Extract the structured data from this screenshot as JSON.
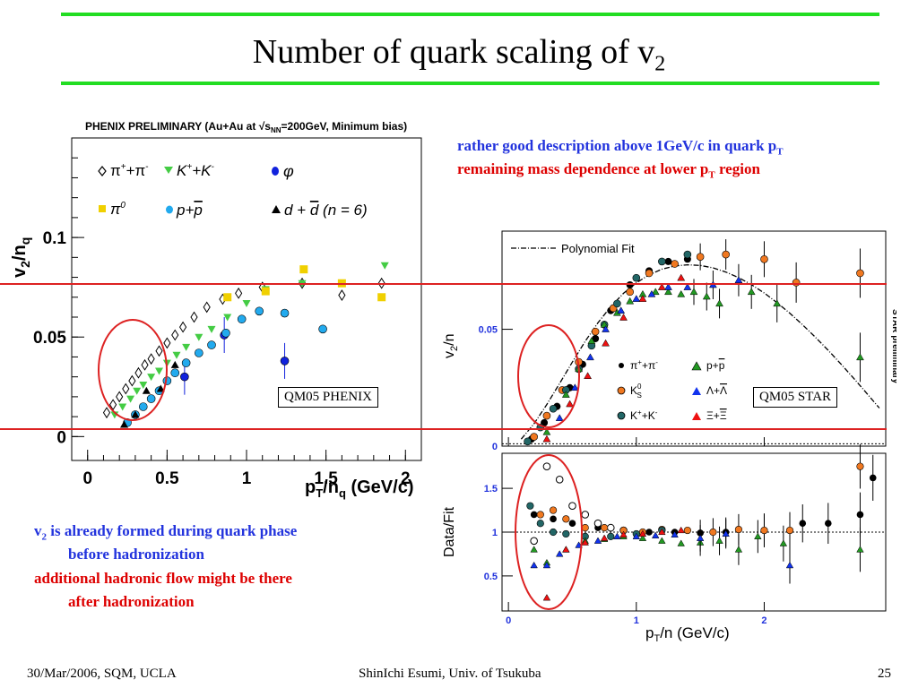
{
  "slide": {
    "title_main": "Number of quark scaling of v",
    "title_sub": "2",
    "notes_top": {
      "line1_main": "rather good description above 1GeV/c in quark p",
      "line1_sub": "T",
      "line2_main": "remaining mass dependence at lower p",
      "line2_sub": "T",
      "line2_tail": " region"
    },
    "notes_bottom": {
      "line1_v": "v",
      "line1_sub": "2",
      "line1_tail": " is already formed during quark phase",
      "line2": "before hadronization",
      "line3": "additional hadronic flow might be there",
      "line4": "after hadronization"
    },
    "qm05_phenix": "QM05 PHENIX",
    "qm05_star": "QM05 STAR",
    "footer": {
      "left": "30/Mar/2006, SQM, UCLA",
      "center": "ShinIchi Esumi, Univ. of Tsukuba",
      "right": "25"
    },
    "colors": {
      "accent_green": "#22dd22",
      "highlight_red": "#dd2222",
      "blue_text": "#2233dd",
      "red_text": "#dd0000"
    }
  },
  "chart_data": [
    {
      "type": "scatter",
      "title": "PHENIX PRELIMINARY (Au+Au at √sNN=200GeV, Minimum bias)",
      "xlabel": "pT/nq (GeV/c)",
      "ylabel": "v2/nq",
      "xlim": [
        -0.1,
        2.1
      ],
      "ylim": [
        -0.012,
        0.15
      ],
      "xticks": [
        "0",
        "0.5",
        "1",
        "1.5",
        "2"
      ],
      "yticks": [
        "0",
        "0.05",
        "0.1"
      ],
      "grid": false,
      "legend": [
        "π⁺+π⁻",
        "K⁺+K⁻",
        "φ",
        "π⁰",
        "p+p̄",
        "d + d̄ (n = 6)"
      ],
      "series": [
        {
          "name": "π⁺+π⁻",
          "marker": "diamond-open",
          "color": "#000000",
          "x": [
            0.12,
            0.16,
            0.2,
            0.24,
            0.28,
            0.32,
            0.36,
            0.4,
            0.45,
            0.5,
            0.55,
            0.6,
            0.67,
            0.75,
            0.85,
            0.95,
            1.1,
            1.35,
            1.6,
            1.85
          ],
          "y": [
            0.012,
            0.016,
            0.02,
            0.024,
            0.028,
            0.032,
            0.036,
            0.039,
            0.043,
            0.047,
            0.051,
            0.055,
            0.06,
            0.065,
            0.069,
            0.072,
            0.075,
            0.077,
            0.071,
            0.077
          ]
        },
        {
          "name": "K⁺+K⁻",
          "marker": "triangle-down",
          "color": "#44cc44",
          "x": [
            0.17,
            0.22,
            0.27,
            0.31,
            0.35,
            0.4,
            0.45,
            0.5,
            0.56,
            0.62,
            0.7,
            0.78,
            0.88,
            1.0,
            1.12,
            1.35,
            1.6,
            1.87
          ],
          "y": [
            0.011,
            0.015,
            0.019,
            0.023,
            0.026,
            0.03,
            0.033,
            0.037,
            0.041,
            0.045,
            0.05,
            0.054,
            0.06,
            0.067,
            0.074,
            0.077,
            0.077,
            0.086
          ]
        },
        {
          "name": "φ",
          "marker": "circle",
          "color": "#1122dd",
          "x": [
            0.61,
            0.86,
            1.24
          ],
          "y": [
            0.03,
            0.051,
            0.038
          ]
        },
        {
          "name": "π⁰",
          "marker": "square",
          "color": "#f0d000",
          "x": [
            0.88,
            1.12,
            1.36,
            1.6,
            1.85
          ],
          "y": [
            0.07,
            0.073,
            0.084,
            0.077,
            0.07
          ]
        },
        {
          "name": "p+p̄",
          "marker": "circle",
          "color": "#22aaee",
          "x": [
            0.25,
            0.3,
            0.35,
            0.4,
            0.45,
            0.5,
            0.55,
            0.62,
            0.7,
            0.78,
            0.87,
            0.97,
            1.08,
            1.24,
            1.48
          ],
          "y": [
            0.007,
            0.011,
            0.015,
            0.019,
            0.023,
            0.028,
            0.032,
            0.037,
            0.042,
            0.046,
            0.052,
            0.059,
            0.063,
            0.062,
            0.054
          ]
        },
        {
          "name": "d + d̄ (n = 6)",
          "marker": "triangle-up",
          "color": "#000000",
          "x": [
            0.23,
            0.3,
            0.37,
            0.46,
            0.55
          ],
          "y": [
            0.006,
            0.011,
            0.023,
            0.024,
            0.036
          ]
        }
      ]
    },
    {
      "type": "scatter",
      "xlabel": "pT/n (GeV/c)",
      "ylabel": "v2/n",
      "xlim": [
        -0.05,
        2.95
      ],
      "ylim": [
        0,
        0.092
      ],
      "xticks": [
        "0",
        "1",
        "2"
      ],
      "yticks": [
        "0",
        "0.05"
      ],
      "legend": [
        "Polynomial Fit",
        "π⁺+π⁻",
        "p+p̄",
        "K⁰S",
        "Λ+Λ̄",
        "K⁺+K⁻",
        "Ξ+Ξ̄"
      ],
      "annotation": "STAR preliminary",
      "fit": {
        "name": "Polynomial Fit",
        "x": [
          0.1,
          0.2,
          0.3,
          0.4,
          0.5,
          0.6,
          0.7,
          0.8,
          0.9,
          1.0,
          1.1,
          1.2,
          1.3,
          1.4,
          1.5,
          1.6,
          1.7,
          1.8,
          1.9,
          2.0,
          2.1,
          2.2,
          2.3,
          2.4,
          2.5,
          2.6,
          2.7,
          2.8,
          2.9
        ],
        "y": [
          0.003,
          0.0096,
          0.0178,
          0.0268,
          0.036,
          0.0448,
          0.0528,
          0.0597,
          0.0654,
          0.0699,
          0.0733,
          0.0757,
          0.0771,
          0.0776,
          0.0773,
          0.0763,
          0.0745,
          0.0721,
          0.0691,
          0.0655,
          0.0614,
          0.0569,
          0.0519,
          0.0466,
          0.041,
          0.0351,
          0.029,
          0.0227,
          0.0163
        ]
      },
      "series": [
        {
          "name": "π⁺+π⁻",
          "marker": "circle",
          "color": "#000000",
          "x": [
            0.18,
            0.28,
            0.38,
            0.48,
            0.58,
            0.68,
            0.8,
            0.95,
            1.1,
            1.25,
            1.4
          ],
          "y": [
            0.003,
            0.01,
            0.017,
            0.025,
            0.035,
            0.046,
            0.058,
            0.069,
            0.075,
            0.079,
            0.08
          ]
        },
        {
          "name": "K⁰S",
          "marker": "circle",
          "color": "#f07820",
          "x": [
            0.2,
            0.3,
            0.42,
            0.55,
            0.68,
            0.82,
            0.95,
            1.1,
            1.3,
            1.5,
            1.7,
            2.0,
            2.25,
            2.75
          ],
          "y": [
            0.004,
            0.013,
            0.024,
            0.036,
            0.049,
            0.059,
            0.066,
            0.074,
            0.078,
            0.081,
            0.082,
            0.08,
            0.07,
            0.074
          ]
        },
        {
          "name": "K⁺+K⁻",
          "marker": "circle",
          "color": "#226666",
          "x": [
            0.15,
            0.25,
            0.35,
            0.45,
            0.55,
            0.65,
            0.75,
            0.85,
            1.0,
            1.2,
            1.4
          ],
          "y": [
            0.002,
            0.008,
            0.016,
            0.024,
            0.033,
            0.043,
            0.052,
            0.061,
            0.072,
            0.079,
            0.082
          ]
        },
        {
          "name": "p+p̄",
          "marker": "triangle-up",
          "color": "#229922",
          "x": [
            0.3,
            0.45,
            0.55,
            0.65,
            0.75,
            0.85,
            0.95,
            1.05,
            1.15,
            1.25,
            1.35,
            1.45,
            1.55,
            1.65,
            1.9,
            2.1,
            2.75
          ],
          "y": [
            0.006,
            0.022,
            0.033,
            0.045,
            0.052,
            0.057,
            0.062,
            0.065,
            0.066,
            0.066,
            0.065,
            0.066,
            0.064,
            0.061,
            0.066,
            0.061,
            0.038
          ]
        },
        {
          "name": "Λ+Λ̄",
          "marker": "triangle-up",
          "color": "#1133ee",
          "x": [
            0.4,
            0.52,
            0.64,
            0.76,
            0.88,
            1.0,
            1.12,
            1.25,
            1.4,
            1.6,
            1.8
          ],
          "y": [
            0.012,
            0.025,
            0.038,
            0.05,
            0.058,
            0.063,
            0.065,
            0.068,
            0.068,
            0.069,
            0.071
          ]
        },
        {
          "name": "Ξ+Ξ̄",
          "marker": "triangle-up",
          "color": "#ee1111",
          "x": [
            0.3,
            0.48,
            0.62,
            0.76,
            0.9,
            1.05,
            1.2,
            1.35
          ],
          "y": [
            0.003,
            0.018,
            0.03,
            0.044,
            0.055,
            0.063,
            0.068,
            0.072
          ]
        }
      ]
    },
    {
      "type": "scatter",
      "xlabel": "pT/n (GeV/c)",
      "ylabel": "Data/Fit",
      "xlim": [
        -0.05,
        2.95
      ],
      "ylim": [
        0.1,
        1.9
      ],
      "xticks": [
        "0",
        "1",
        "2"
      ],
      "yticks": [
        "0.5",
        "1",
        "1.5"
      ],
      "reference_line": 1.0,
      "series": [
        {
          "name": "π⁺+π⁻",
          "marker": "circle",
          "color": "#000000",
          "x": [
            0.2,
            0.35,
            0.5,
            0.7,
            0.9,
            1.1,
            1.3,
            1.5,
            1.7,
            2.0,
            2.3,
            2.5,
            2.75,
            2.85
          ],
          "y": [
            1.2,
            1.15,
            1.1,
            1.05,
            1.02,
            1.0,
            1.0,
            0.99,
            1.0,
            1.02,
            1.1,
            1.1,
            1.2,
            1.62
          ]
        },
        {
          "name": "π⁺+π⁻ (open)",
          "marker": "circle-open",
          "color": "#000000",
          "x": [
            0.2,
            0.3,
            0.4,
            0.5,
            0.6,
            0.7,
            0.8,
            0.9
          ],
          "y": [
            0.9,
            1.75,
            1.6,
            1.3,
            1.2,
            1.1,
            1.05,
            1.02
          ]
        },
        {
          "name": "K⁰S",
          "marker": "circle",
          "color": "#f07820",
          "x": [
            0.25,
            0.35,
            0.45,
            0.6,
            0.75,
            0.9,
            1.05,
            1.2,
            1.4,
            1.6,
            1.8,
            2.0,
            2.2,
            2.75
          ],
          "y": [
            1.2,
            1.25,
            1.15,
            1.05,
            1.05,
            1.02,
            1.0,
            1.03,
            1.02,
            1.0,
            1.03,
            1.02,
            1.02,
            1.75
          ]
        },
        {
          "name": "K⁺+K⁻",
          "marker": "circle",
          "color": "#226666",
          "x": [
            0.17,
            0.25,
            0.35,
            0.45,
            0.6,
            0.8,
            1.0,
            1.2
          ],
          "y": [
            1.3,
            1.1,
            1.0,
            0.98,
            0.95,
            0.95,
            0.98,
            1.02
          ]
        },
        {
          "name": "p+p̄",
          "marker": "triangle-up",
          "color": "#229922",
          "x": [
            0.2,
            0.3,
            0.45,
            0.6,
            0.75,
            0.9,
            1.05,
            1.2,
            1.35,
            1.5,
            1.65,
            1.8,
            1.95,
            2.15,
            2.75
          ],
          "y": [
            0.8,
            0.65,
            0.8,
            0.9,
            0.92,
            0.95,
            0.93,
            0.9,
            0.87,
            0.88,
            0.9,
            0.8,
            0.95,
            0.87,
            0.8
          ]
        },
        {
          "name": "Λ+Λ̄",
          "marker": "triangle-up",
          "color": "#1133ee",
          "x": [
            0.2,
            0.3,
            0.4,
            0.55,
            0.7,
            0.85,
            1.0,
            1.15,
            1.3,
            1.5,
            1.7,
            2.2
          ],
          "y": [
            0.62,
            0.62,
            0.75,
            0.85,
            0.9,
            0.95,
            0.95,
            0.96,
            0.97,
            0.93,
            0.98,
            0.62
          ]
        },
        {
          "name": "Ξ+Ξ̄",
          "marker": "triangle-up",
          "color": "#ee1111",
          "x": [
            0.3,
            0.45,
            0.6,
            0.75,
            0.9,
            1.05,
            1.2,
            1.35
          ],
          "y": [
            0.25,
            0.8,
            0.88,
            0.93,
            0.97,
            0.98,
            1.0,
            1.02
          ]
        }
      ]
    }
  ]
}
